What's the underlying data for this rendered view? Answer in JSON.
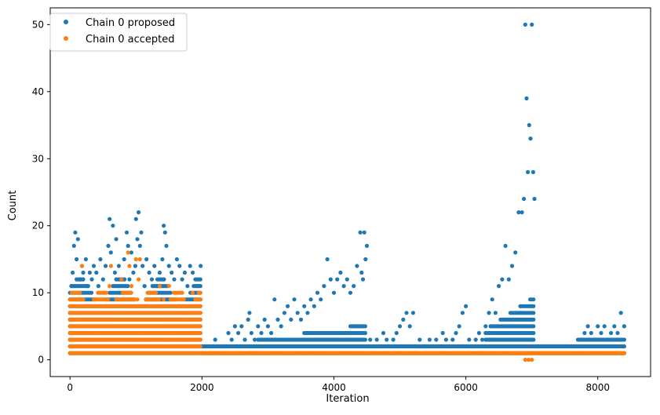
{
  "chart_data": {
    "type": "scatter",
    "title": "",
    "xlabel": "Iteration",
    "ylabel": "Count",
    "xlim": [
      -300,
      8800
    ],
    "ylim": [
      -2.5,
      52.5
    ],
    "x_ticks": [
      0,
      2000,
      4000,
      6000,
      8000
    ],
    "x_tick_labels": [
      "0",
      "2000",
      "4000",
      "6000",
      "8000"
    ],
    "y_ticks": [
      0,
      10,
      20,
      30,
      40,
      50
    ],
    "y_tick_labels": [
      "0",
      "10",
      "20",
      "30",
      "40",
      "50"
    ],
    "grid": false,
    "legend_position": "top-left",
    "series": [
      {
        "name": "Chain 0 proposed",
        "color": "#1f77b4",
        "points": [
          [
            0,
            8
          ],
          [
            20,
            11
          ],
          [
            40,
            13
          ],
          [
            60,
            17
          ],
          [
            80,
            19
          ],
          [
            100,
            15
          ],
          [
            120,
            18
          ],
          [
            150,
            12
          ],
          [
            180,
            14
          ],
          [
            200,
            13
          ],
          [
            240,
            15
          ],
          [
            270,
            11
          ],
          [
            300,
            13
          ],
          [
            330,
            12
          ],
          [
            360,
            14
          ],
          [
            400,
            13
          ],
          [
            430,
            11
          ],
          [
            460,
            15
          ],
          [
            500,
            12
          ],
          [
            540,
            14
          ],
          [
            580,
            17
          ],
          [
            600,
            21
          ],
          [
            620,
            16
          ],
          [
            650,
            20
          ],
          [
            680,
            13
          ],
          [
            700,
            18
          ],
          [
            740,
            14
          ],
          [
            780,
            12
          ],
          [
            820,
            15
          ],
          [
            860,
            19
          ],
          [
            880,
            17
          ],
          [
            900,
            12
          ],
          [
            930,
            16
          ],
          [
            960,
            13
          ],
          [
            990,
            14
          ],
          [
            1000,
            21
          ],
          [
            1020,
            18
          ],
          [
            1040,
            22
          ],
          [
            1060,
            17
          ],
          [
            1080,
            19
          ],
          [
            1100,
            14
          ],
          [
            1130,
            11
          ],
          [
            1160,
            15
          ],
          [
            1200,
            13
          ],
          [
            1240,
            12
          ],
          [
            1280,
            14
          ],
          [
            1320,
            11
          ],
          [
            1360,
            13
          ],
          [
            1400,
            15
          ],
          [
            1420,
            20
          ],
          [
            1440,
            19
          ],
          [
            1460,
            17
          ],
          [
            1500,
            14
          ],
          [
            1540,
            13
          ],
          [
            1580,
            12
          ],
          [
            1620,
            15
          ],
          [
            1660,
            14
          ],
          [
            1700,
            12
          ],
          [
            1740,
            13
          ],
          [
            1780,
            11
          ],
          [
            1820,
            14
          ],
          [
            1860,
            13
          ],
          [
            1900,
            12
          ],
          [
            1940,
            11
          ],
          [
            1980,
            14
          ],
          [
            2000,
            2
          ],
          [
            2100,
            2
          ],
          [
            2200,
            3
          ],
          [
            2300,
            2
          ],
          [
            2400,
            4
          ],
          [
            2450,
            3
          ],
          [
            2500,
            5
          ],
          [
            2550,
            4
          ],
          [
            2600,
            5
          ],
          [
            2650,
            3
          ],
          [
            2700,
            6
          ],
          [
            2720,
            7
          ],
          [
            2750,
            4
          ],
          [
            2800,
            3
          ],
          [
            2850,
            5
          ],
          [
            2900,
            4
          ],
          [
            2950,
            6
          ],
          [
            3000,
            5
          ],
          [
            3050,
            4
          ],
          [
            3100,
            9
          ],
          [
            3150,
            6
          ],
          [
            3200,
            5
          ],
          [
            3250,
            7
          ],
          [
            3300,
            8
          ],
          [
            3350,
            6
          ],
          [
            3400,
            9
          ],
          [
            3450,
            7
          ],
          [
            3500,
            6
          ],
          [
            3550,
            8
          ],
          [
            3600,
            7
          ],
          [
            3650,
            9
          ],
          [
            3700,
            8
          ],
          [
            3750,
            10
          ],
          [
            3800,
            9
          ],
          [
            3850,
            11
          ],
          [
            3900,
            15
          ],
          [
            3950,
            12
          ],
          [
            4000,
            10
          ],
          [
            4050,
            12
          ],
          [
            4100,
            13
          ],
          [
            4150,
            11
          ],
          [
            4200,
            12
          ],
          [
            4250,
            10
          ],
          [
            4300,
            11
          ],
          [
            4350,
            14
          ],
          [
            4400,
            19
          ],
          [
            4420,
            13
          ],
          [
            4440,
            12
          ],
          [
            4460,
            19
          ],
          [
            4480,
            15
          ],
          [
            4500,
            17
          ],
          [
            4550,
            3
          ],
          [
            4600,
            2
          ],
          [
            4650,
            3
          ],
          [
            4700,
            2
          ],
          [
            4750,
            4
          ],
          [
            4800,
            3
          ],
          [
            4850,
            2
          ],
          [
            4900,
            3
          ],
          [
            4950,
            4
          ],
          [
            5000,
            5
          ],
          [
            5050,
            6
          ],
          [
            5100,
            7
          ],
          [
            5150,
            5
          ],
          [
            5200,
            7
          ],
          [
            5250,
            2
          ],
          [
            5300,
            3
          ],
          [
            5350,
            2
          ],
          [
            5400,
            2
          ],
          [
            5450,
            3
          ],
          [
            5500,
            2
          ],
          [
            5550,
            3
          ],
          [
            5600,
            2
          ],
          [
            5650,
            4
          ],
          [
            5700,
            3
          ],
          [
            5750,
            2
          ],
          [
            5800,
            3
          ],
          [
            5850,
            4
          ],
          [
            5900,
            5
          ],
          [
            5950,
            7
          ],
          [
            6000,
            8
          ],
          [
            6050,
            3
          ],
          [
            6100,
            2
          ],
          [
            6150,
            3
          ],
          [
            6200,
            4
          ],
          [
            6250,
            3
          ],
          [
            6300,
            5
          ],
          [
            6350,
            7
          ],
          [
            6400,
            9
          ],
          [
            6450,
            7
          ],
          [
            6500,
            11
          ],
          [
            6550,
            12
          ],
          [
            6600,
            17
          ],
          [
            6650,
            12
          ],
          [
            6700,
            14
          ],
          [
            6750,
            16
          ],
          [
            6800,
            22
          ],
          [
            6850,
            22
          ],
          [
            6880,
            24
          ],
          [
            6900,
            50
          ],
          [
            6920,
            39
          ],
          [
            6940,
            28
          ],
          [
            6960,
            35
          ],
          [
            6980,
            33
          ],
          [
            7000,
            50
          ],
          [
            7020,
            28
          ],
          [
            7040,
            24
          ],
          [
            7060,
            2
          ],
          [
            7100,
            2
          ],
          [
            7150,
            1
          ],
          [
            7200,
            2
          ],
          [
            7300,
            2
          ],
          [
            7400,
            2
          ],
          [
            7500,
            2
          ],
          [
            7600,
            2
          ],
          [
            7700,
            2
          ],
          [
            7750,
            3
          ],
          [
            7800,
            4
          ],
          [
            7850,
            5
          ],
          [
            7900,
            4
          ],
          [
            7950,
            3
          ],
          [
            8000,
            5
          ],
          [
            8050,
            4
          ],
          [
            8100,
            5
          ],
          [
            8150,
            3
          ],
          [
            8200,
            4
          ],
          [
            8250,
            5
          ],
          [
            8300,
            4
          ],
          [
            8350,
            7
          ],
          [
            8400,
            5
          ]
        ]
      },
      {
        "name": "Chain 0 accepted",
        "color": "#ff7f0e",
        "points": [
          [
            0,
            2
          ],
          [
            20,
            3
          ],
          [
            40,
            5
          ],
          [
            60,
            1
          ],
          [
            80,
            4
          ],
          [
            100,
            7
          ],
          [
            120,
            3
          ],
          [
            150,
            9
          ],
          [
            180,
            14
          ],
          [
            200,
            6
          ],
          [
            240,
            2
          ],
          [
            270,
            8
          ],
          [
            300,
            3
          ],
          [
            330,
            5
          ],
          [
            360,
            9
          ],
          [
            400,
            4
          ],
          [
            430,
            2
          ],
          [
            460,
            7
          ],
          [
            500,
            10
          ],
          [
            540,
            3
          ],
          [
            580,
            8
          ],
          [
            600,
            11
          ],
          [
            620,
            14
          ],
          [
            650,
            6
          ],
          [
            680,
            3
          ],
          [
            700,
            9
          ],
          [
            740,
            2
          ],
          [
            780,
            12
          ],
          [
            820,
            5
          ],
          [
            860,
            1
          ],
          [
            880,
            16
          ],
          [
            900,
            14
          ],
          [
            930,
            11
          ],
          [
            960,
            3
          ],
          [
            990,
            1
          ],
          [
            1000,
            15
          ],
          [
            1020,
            9
          ],
          [
            1040,
            12
          ],
          [
            1060,
            15
          ],
          [
            1080,
            4
          ],
          [
            1100,
            2
          ],
          [
            1130,
            8
          ],
          [
            1160,
            6
          ],
          [
            1200,
            3
          ],
          [
            1240,
            9
          ],
          [
            1280,
            2
          ],
          [
            1320,
            5
          ],
          [
            1360,
            11
          ],
          [
            1400,
            1
          ],
          [
            1420,
            9
          ],
          [
            1440,
            3
          ],
          [
            1460,
            7
          ],
          [
            1500,
            11
          ],
          [
            1540,
            6
          ],
          [
            1580,
            4
          ],
          [
            1620,
            2
          ],
          [
            1660,
            8
          ],
          [
            1700,
            5
          ],
          [
            1740,
            7
          ],
          [
            1780,
            3
          ],
          [
            1820,
            6
          ],
          [
            1860,
            10
          ],
          [
            1900,
            4
          ],
          [
            1940,
            8
          ],
          [
            1980,
            9
          ],
          [
            2000,
            1
          ],
          [
            2500,
            1
          ],
          [
            3000,
            1
          ],
          [
            3500,
            1
          ],
          [
            4000,
            1
          ],
          [
            4500,
            1
          ],
          [
            5000,
            1
          ],
          [
            5500,
            1
          ],
          [
            6000,
            1
          ],
          [
            6500,
            1
          ],
          [
            6900,
            0
          ],
          [
            6950,
            0
          ],
          [
            7000,
            0
          ],
          [
            7500,
            1
          ],
          [
            8000,
            1
          ],
          [
            8400,
            1
          ]
        ]
      }
    ]
  }
}
